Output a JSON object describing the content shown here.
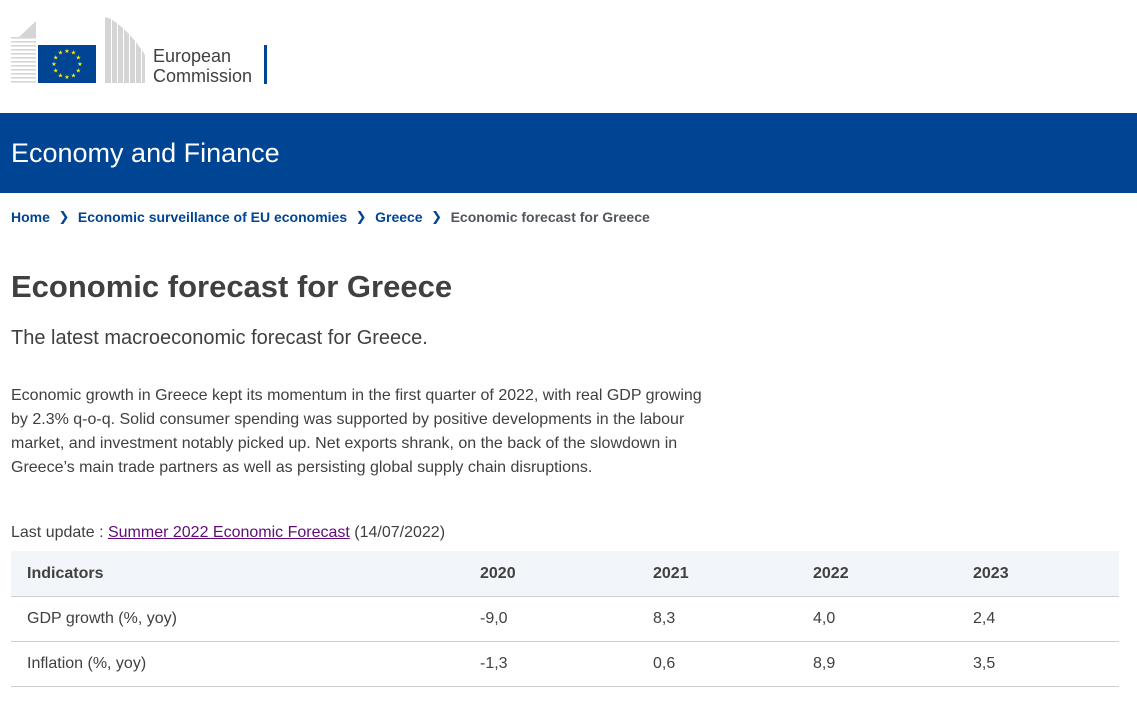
{
  "header": {
    "logo_line1": "European",
    "logo_line2": "Commission",
    "site_name": "Economy and Finance"
  },
  "breadcrumb": {
    "items": [
      "Home",
      "Economic surveillance of EU economies",
      "Greece"
    ],
    "current": "Economic forecast for Greece"
  },
  "page": {
    "title": "Economic forecast for Greece",
    "lead": "The latest macroeconomic forecast for Greece.",
    "body": "Economic growth in Greece kept its momentum in the first quarter of 2022, with real GDP growing by 2.3% q-o-q. Solid consumer spending was supported by positive developments in the labour market, and investment notably picked up. Net exports shrank, on the back of the slowdown in Greece’s main trade partners as well as persisting global supply chain disruptions.",
    "last_update_label": "Last update :",
    "last_update_link": "Summer 2022 Economic Forecast",
    "last_update_date": "(14/07/2022)"
  },
  "table": {
    "headers": [
      "Indicators",
      "2020",
      "2021",
      "2022",
      "2023"
    ],
    "rows": [
      [
        "GDP growth (%, yoy)",
        "-9,0",
        "8,3",
        "4,0",
        "2,4"
      ],
      [
        "Inflation (%, yoy)",
        "-1,3",
        "0,6",
        "8,9",
        "3,5"
      ]
    ]
  },
  "colors": {
    "brand_blue": "#004494",
    "star_yellow": "#ffed00",
    "link_visited": "#620b7a",
    "table_header_bg": "#f2f5f9"
  }
}
